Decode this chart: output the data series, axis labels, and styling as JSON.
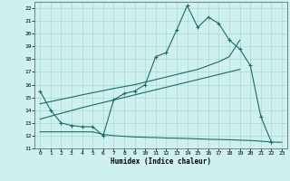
{
  "xlabel": "Humidex (Indice chaleur)",
  "bg_color": "#cef0ee",
  "grid_color": "#aad8d4",
  "line_color": "#1a6b6b",
  "xlim": [
    -0.5,
    23.5
  ],
  "ylim": [
    11,
    22.5
  ],
  "yticks": [
    11,
    12,
    13,
    14,
    15,
    16,
    17,
    18,
    19,
    20,
    21,
    22
  ],
  "xticks": [
    0,
    1,
    2,
    3,
    4,
    5,
    6,
    7,
    8,
    9,
    10,
    11,
    12,
    13,
    14,
    15,
    16,
    17,
    18,
    19,
    20,
    21,
    22,
    23
  ],
  "curve1_x": [
    0,
    1,
    2,
    3,
    4,
    5,
    6,
    7,
    8,
    9,
    10,
    11,
    12,
    13,
    14,
    15,
    16,
    17,
    18,
    19,
    20,
    21,
    22
  ],
  "curve1_y": [
    15.5,
    14.0,
    13.0,
    12.8,
    12.7,
    12.7,
    12.0,
    14.8,
    15.3,
    15.5,
    16.0,
    18.2,
    18.5,
    20.3,
    22.2,
    20.5,
    21.3,
    20.8,
    19.5,
    18.8,
    17.5,
    13.5,
    11.5
  ],
  "trend_up_x": [
    0,
    4,
    7,
    9,
    11,
    12,
    13,
    14,
    15,
    16,
    17,
    18,
    19
  ],
  "trend_up_y": [
    14.5,
    15.2,
    15.7,
    16.0,
    16.4,
    16.6,
    16.8,
    17.0,
    17.2,
    17.5,
    17.8,
    18.2,
    19.5
  ],
  "trend_lo_x": [
    0,
    4,
    6,
    7,
    8,
    9,
    10,
    11,
    12,
    13,
    14,
    15,
    16,
    17,
    18,
    19
  ],
  "trend_lo_y": [
    13.3,
    14.2,
    14.6,
    14.8,
    15.0,
    15.2,
    15.4,
    15.6,
    15.8,
    16.0,
    16.2,
    16.4,
    16.6,
    16.8,
    17.0,
    17.2
  ],
  "flat_x": [
    0,
    1,
    2,
    3,
    4,
    5,
    6,
    7,
    8,
    9,
    10,
    11,
    12,
    13,
    14,
    15,
    16,
    17,
    18,
    19,
    20,
    21,
    22,
    23
  ],
  "flat_y": [
    12.3,
    12.3,
    12.3,
    12.3,
    12.3,
    12.3,
    12.1,
    12.0,
    11.95,
    11.9,
    11.88,
    11.85,
    11.82,
    11.8,
    11.78,
    11.75,
    11.72,
    11.7,
    11.68,
    11.65,
    11.62,
    11.57,
    11.5,
    11.48
  ]
}
